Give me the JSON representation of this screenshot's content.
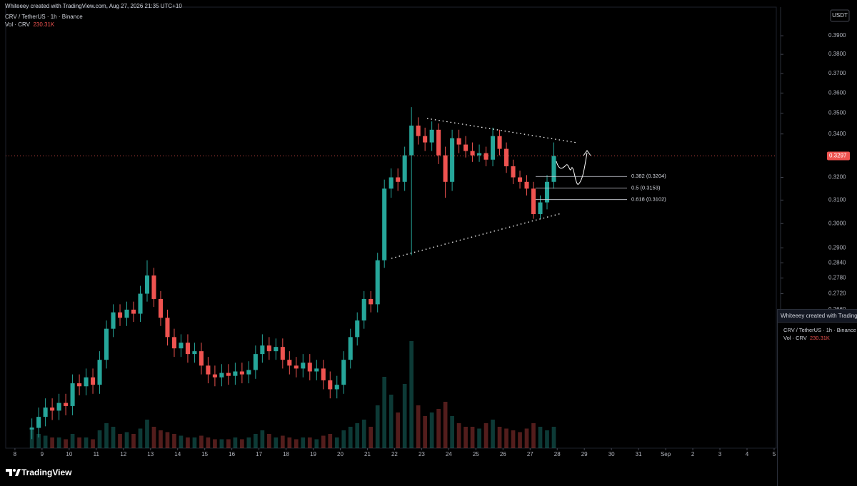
{
  "header": {
    "title": "Whiteeey created with TradingView.com, Aug 27, 2026 21:35 UTC+10",
    "symbol": "CRV / TetherUS · 1h · Binance",
    "volume_label": "Vol · CRV",
    "volume_value": "230.31K"
  },
  "currency": "USDT",
  "chart_data": {
    "type": "candlestick",
    "x": [
      8.5,
      8.75,
      9,
      9.25,
      9.5,
      9.75,
      10,
      10.25,
      10.5,
      10.75,
      11,
      11.25,
      11.5,
      11.75,
      12,
      12.25,
      12.5,
      12.75,
      13,
      13.25,
      13.5,
      13.75,
      14,
      14.25,
      14.5,
      14.75,
      15,
      15.25,
      15.5,
      15.75,
      16,
      16.25,
      16.5,
      16.75,
      17,
      17.25,
      17.5,
      17.75,
      18,
      18.25,
      18.5,
      18.75,
      19,
      19.25,
      19.5,
      19.75,
      20,
      20.25,
      20.5,
      20.75,
      21,
      21.25,
      21.5,
      21.75,
      22,
      22.25,
      22.5,
      22.75,
      23,
      23.25,
      23.5,
      23.75,
      24,
      24.25,
      24.5,
      24.75,
      25,
      25.25,
      25.5,
      25.75,
      26,
      26.25,
      26.5,
      26.75,
      27,
      27.25,
      27.5,
      27.75
    ],
    "open": [
      0.225,
      0.2255,
      0.229,
      0.232,
      0.231,
      0.2335,
      0.2325,
      0.24,
      0.239,
      0.242,
      0.2395,
      0.248,
      0.259,
      0.265,
      0.263,
      0.266,
      0.2645,
      0.272,
      0.279,
      0.27,
      0.263,
      0.256,
      0.252,
      0.254,
      0.25,
      0.251,
      0.246,
      0.243,
      0.242,
      0.2435,
      0.2425,
      0.244,
      0.243,
      0.2445,
      0.25,
      0.253,
      0.251,
      0.2525,
      0.248,
      0.246,
      0.245,
      0.247,
      0.244,
      0.245,
      0.241,
      0.238,
      0.2395,
      0.248,
      0.256,
      0.262,
      0.27,
      0.268,
      0.285,
      0.315,
      0.32,
      0.318,
      0.33,
      0.344,
      0.339,
      0.336,
      0.342,
      0.33,
      0.318,
      0.338,
      0.335,
      0.332,
      0.33,
      0.331,
      0.328,
      0.339,
      0.333,
      0.325,
      0.32,
      0.318,
      0.315,
      0.304,
      0.309,
      0.318
    ],
    "high": [
      0.2285,
      0.232,
      0.235,
      0.235,
      0.2365,
      0.2365,
      0.243,
      0.243,
      0.245,
      0.245,
      0.251,
      0.262,
      0.268,
      0.268,
      0.269,
      0.269,
      0.275,
      0.285,
      0.282,
      0.273,
      0.266,
      0.259,
      0.257,
      0.257,
      0.254,
      0.254,
      0.249,
      0.246,
      0.2465,
      0.2465,
      0.247,
      0.247,
      0.2475,
      0.253,
      0.257,
      0.256,
      0.2555,
      0.2555,
      0.251,
      0.249,
      0.25,
      0.25,
      0.248,
      0.248,
      0.244,
      0.2425,
      0.251,
      0.259,
      0.265,
      0.273,
      0.273,
      0.288,
      0.319,
      0.324,
      0.324,
      0.334,
      0.353,
      0.348,
      0.343,
      0.346,
      0.345,
      0.334,
      0.342,
      0.342,
      0.339,
      0.336,
      0.335,
      0.334,
      0.343,
      0.342,
      0.336,
      0.328,
      0.323,
      0.321,
      0.318,
      0.312,
      0.321,
      0.336
    ],
    "low": [
      0.222,
      0.2225,
      0.226,
      0.228,
      0.228,
      0.2295,
      0.2295,
      0.236,
      0.236,
      0.2365,
      0.2365,
      0.245,
      0.256,
      0.26,
      0.26,
      0.2615,
      0.2615,
      0.269,
      0.267,
      0.26,
      0.253,
      0.249,
      0.249,
      0.247,
      0.247,
      0.243,
      0.24,
      0.239,
      0.239,
      0.2395,
      0.2395,
      0.24,
      0.24,
      0.2415,
      0.247,
      0.248,
      0.248,
      0.245,
      0.243,
      0.242,
      0.242,
      0.241,
      0.241,
      0.238,
      0.235,
      0.235,
      0.2365,
      0.245,
      0.253,
      0.259,
      0.265,
      0.265,
      0.282,
      0.311,
      0.314,
      0.314,
      0.287,
      0.335,
      0.332,
      0.332,
      0.326,
      0.311,
      0.314,
      0.331,
      0.329,
      0.327,
      0.327,
      0.325,
      0.325,
      0.33,
      0.322,
      0.317,
      0.315,
      0.312,
      0.302,
      0.302,
      0.306,
      0.315
    ],
    "close": [
      0.2255,
      0.229,
      0.232,
      0.231,
      0.2335,
      0.2325,
      0.24,
      0.239,
      0.242,
      0.2395,
      0.248,
      0.259,
      0.265,
      0.263,
      0.266,
      0.2645,
      0.272,
      0.279,
      0.27,
      0.263,
      0.256,
      0.252,
      0.254,
      0.25,
      0.251,
      0.246,
      0.243,
      0.242,
      0.2435,
      0.2425,
      0.244,
      0.243,
      0.2445,
      0.25,
      0.253,
      0.251,
      0.2525,
      0.248,
      0.246,
      0.245,
      0.247,
      0.244,
      0.245,
      0.241,
      0.238,
      0.2395,
      0.248,
      0.256,
      0.262,
      0.27,
      0.268,
      0.285,
      0.315,
      0.32,
      0.318,
      0.33,
      0.344,
      0.339,
      0.336,
      0.342,
      0.33,
      0.318,
      0.338,
      0.335,
      0.332,
      0.33,
      0.331,
      0.328,
      0.339,
      0.333,
      0.325,
      0.32,
      0.318,
      0.315,
      0.304,
      0.309,
      0.318,
      0.3297
    ],
    "volume": [
      60,
      40,
      35,
      30,
      30,
      25,
      40,
      30,
      30,
      25,
      50,
      70,
      60,
      40,
      45,
      40,
      55,
      80,
      60,
      50,
      45,
      40,
      35,
      30,
      30,
      35,
      30,
      25,
      25,
      25,
      30,
      25,
      30,
      40,
      50,
      40,
      30,
      35,
      30,
      25,
      30,
      30,
      25,
      35,
      40,
      30,
      50,
      60,
      70,
      80,
      60,
      120,
      200,
      150,
      100,
      180,
      300,
      120,
      90,
      100,
      110,
      130,
      90,
      70,
      60,
      60,
      55,
      70,
      80,
      60,
      55,
      50,
      45,
      55,
      70,
      60,
      50,
      60
    ],
    "up_color": "#26a69a",
    "down_color": "#ef5350",
    "xlim": [
      7.66,
      36.08
    ],
    "xticks": [
      8,
      9,
      10,
      11,
      12,
      13,
      14,
      15,
      16,
      17,
      18,
      19,
      20,
      21,
      22,
      23,
      24,
      25,
      26,
      27,
      28,
      29,
      30,
      31,
      {
        "value": 32,
        "label": "Sep"
      },
      {
        "value": 33,
        "label": "2"
      },
      {
        "value": 34,
        "label": "3"
      },
      {
        "value": 35,
        "label": "4"
      },
      {
        "value": 36,
        "label": "5"
      }
    ],
    "ylim": [
      0.2192,
      0.4059
    ],
    "log_scale": true,
    "yticks": [
      {
        "value": 0.39,
        "label": "0.3900"
      },
      {
        "value": 0.38,
        "label": "0.3800"
      },
      {
        "value": 0.37,
        "label": "0.3700"
      },
      {
        "value": 0.36,
        "label": "0.3600"
      },
      {
        "value": 0.35,
        "label": "0.3500"
      },
      {
        "value": 0.34,
        "label": "0.3400"
      },
      {
        "value": 0.32,
        "label": "0.3200"
      },
      {
        "value": 0.31,
        "label": "0.3100"
      },
      {
        "value": 0.3,
        "label": "0.3000"
      },
      {
        "value": 0.29,
        "label": "0.2900"
      },
      {
        "value": 0.284,
        "label": "0.2840"
      },
      {
        "value": 0.278,
        "label": "0.2780"
      },
      {
        "value": 0.272,
        "label": "0.2720"
      },
      {
        "value": 0.266,
        "label": "0.2660"
      }
    ],
    "last_price": 0.3297,
    "fib_levels": [
      {
        "value": 0.3204,
        "label": "0.382 (0.3204)"
      },
      {
        "value": 0.3153,
        "label": "0.5 (0.3153)"
      },
      {
        "value": 0.3102,
        "label": "0.618 (0.3102)"
      }
    ]
  },
  "popup": {
    "title": "Whiteeey created with TradingView",
    "symbol": "CRV / TetherUS · 1h · Binance",
    "volume_label": "Vol · CRV",
    "volume_value": "230.31K"
  },
  "footer": {
    "brand": "TradingView"
  }
}
